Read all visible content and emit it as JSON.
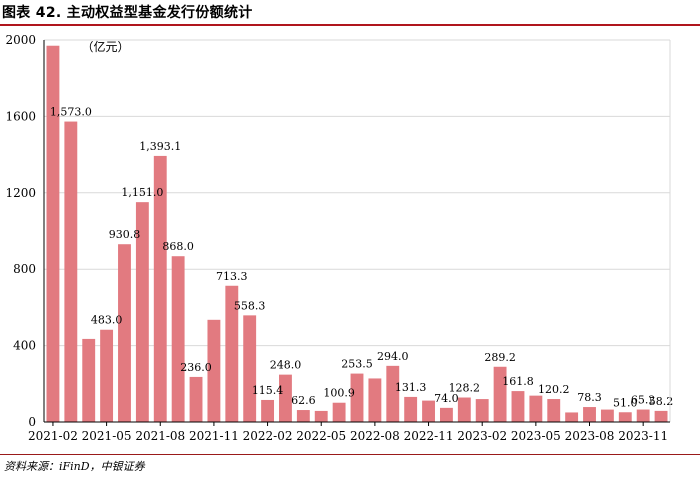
{
  "figure": {
    "title": "图表 42. 主动权益型基金发行份额统计",
    "source": "资料来源：iFinD，中银证券",
    "colors": {
      "bar": "#e27a80",
      "accent_rule": "#b0151d",
      "grid": "#d9d9d9"
    }
  },
  "chart_data": {
    "type": "bar",
    "title": "",
    "unit_label": "（亿元）",
    "xlabel": "",
    "ylabel": "",
    "ylim": [
      0,
      2000
    ],
    "yticks": [
      0,
      400,
      800,
      1200,
      1600,
      2000
    ],
    "ytick_labels": [
      "0",
      "400",
      "800",
      "1200",
      "1600",
      "2000"
    ],
    "grid": true,
    "categories": [
      "2021-02",
      "2021-03",
      "2021-04",
      "2021-05",
      "2021-06",
      "2021-07",
      "2021-08",
      "2021-09",
      "2021-10",
      "2021-11",
      "2021-12",
      "2022-01",
      "2022-02",
      "2022-03",
      "2022-04",
      "2022-05",
      "2022-06",
      "2022-07",
      "2022-08",
      "2022-09",
      "2022-10",
      "2022-11",
      "2022-12",
      "2023-01",
      "2023-02",
      "2023-03",
      "2023-04",
      "2023-05",
      "2023-06",
      "2023-07",
      "2023-08",
      "2023-09",
      "2023-10",
      "2023-11",
      "2023-12"
    ],
    "xtick_labels": [
      "2021-02",
      "",
      "",
      "2021-05",
      "",
      "",
      "2021-08",
      "",
      "",
      "2021-11",
      "",
      "",
      "2022-02",
      "",
      "",
      "2022-05",
      "",
      "",
      "2022-08",
      "",
      "",
      "2022-11",
      "",
      "",
      "2023-02",
      "",
      "",
      "2023-05",
      "",
      "",
      "2023-08",
      "",
      "",
      "2023-11",
      ""
    ],
    "values": [
      1970,
      1573.0,
      435,
      483.0,
      930.8,
      1151.0,
      1393.1,
      868.0,
      236.0,
      535,
      713.3,
      558.3,
      115.4,
      248.0,
      62.6,
      58,
      100.9,
      253.5,
      228,
      294.0,
      131.3,
      112,
      74.0,
      128.2,
      120,
      289.2,
      161.8,
      138,
      120.2,
      50,
      78.3,
      65,
      51.0,
      65.2,
      58.2
    ],
    "data_labels": [
      "",
      "1,573.0",
      "",
      "483.0",
      "930.8",
      "1,151.0",
      "1,393.1",
      "868.0",
      "236.0",
      "",
      "713.3",
      "558.3",
      "115.4",
      "248.0",
      "62.6",
      "",
      "100.9",
      "253.5",
      "",
      "294.0",
      "131.3",
      "",
      "74.0",
      "128.2",
      "",
      "289.2",
      "161.8",
      "",
      "120.2",
      "",
      "78.3",
      "",
      "51.0",
      "65.2",
      "58.2"
    ]
  }
}
